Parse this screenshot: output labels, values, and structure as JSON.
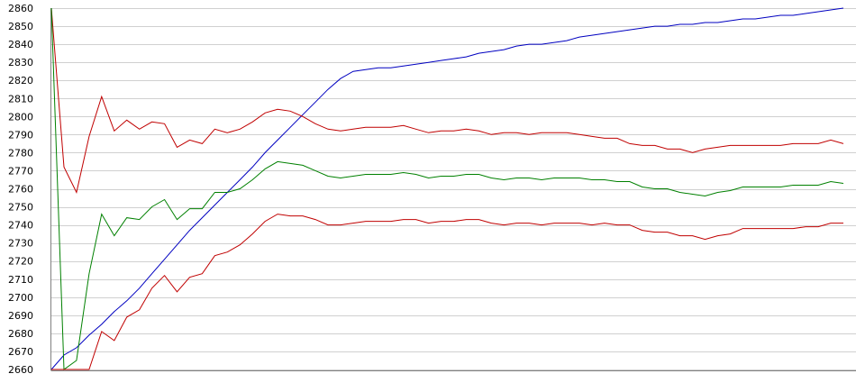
{
  "chart_data": {
    "type": "line",
    "title": "",
    "xlabel": "",
    "ylabel": "",
    "ylim": [
      2660,
      2860
    ],
    "ytick_step": 10,
    "yticks": [
      "2660",
      "2670",
      "2680",
      "2690",
      "2700",
      "2710",
      "2720",
      "2730",
      "2740",
      "2750",
      "2760",
      "2770",
      "2780",
      "2790",
      "2800",
      "2810",
      "2820",
      "2830",
      "2840",
      "2850",
      "2860"
    ],
    "grid": true,
    "legend": "none",
    "xlim": [
      0,
      63
    ],
    "x": [
      0,
      1,
      2,
      3,
      4,
      5,
      6,
      7,
      8,
      9,
      10,
      11,
      12,
      13,
      14,
      15,
      16,
      17,
      18,
      19,
      20,
      21,
      22,
      23,
      24,
      25,
      26,
      27,
      28,
      29,
      30,
      31,
      32,
      33,
      34,
      35,
      36,
      37,
      38,
      39,
      40,
      41,
      42,
      43,
      44,
      45,
      46,
      47,
      48,
      49,
      50,
      51,
      52,
      53,
      54,
      55,
      56,
      57,
      58,
      59,
      60,
      61,
      62,
      63
    ],
    "series": [
      {
        "color": "#0000c0",
        "values": [
          2660,
          2668,
          2672,
          2679,
          2685,
          2692,
          2698,
          2705,
          2713,
          2721,
          2729,
          2737,
          2744,
          2751,
          2758,
          2765,
          2772,
          2780,
          2787,
          2794,
          2801,
          2808,
          2815,
          2821,
          2825,
          2826,
          2827,
          2827,
          2828,
          2829,
          2830,
          2831,
          2832,
          2833,
          2835,
          2836,
          2837,
          2839,
          2840,
          2840,
          2841,
          2842,
          2844,
          2845,
          2846,
          2847,
          2848,
          2849,
          2850,
          2850,
          2851,
          2851,
          2852,
          2852,
          2853,
          2854,
          2854,
          2855,
          2856,
          2856,
          2857,
          2858,
          2859,
          2860
        ]
      },
      {
        "color": "#c00000",
        "values": [
          2860,
          2772,
          2758,
          2789,
          2811,
          2792,
          2798,
          2793,
          2797,
          2796,
          2783,
          2787,
          2785,
          2793,
          2791,
          2793,
          2797,
          2802,
          2804,
          2803,
          2800,
          2796,
          2793,
          2792,
          2793,
          2794,
          2794,
          2794,
          2795,
          2793,
          2791,
          2792,
          2792,
          2793,
          2792,
          2790,
          2791,
          2791,
          2790,
          2791,
          2791,
          2791,
          2790,
          2789,
          2788,
          2788,
          2785,
          2784,
          2784,
          2782,
          2782,
          2780,
          2782,
          2783,
          2784,
          2784,
          2784,
          2784,
          2784,
          2785,
          2785,
          2785,
          2787,
          2785
        ]
      },
      {
        "color": "#008000",
        "values": [
          2860,
          2660,
          2665,
          2713,
          2746,
          2734,
          2744,
          2743,
          2750,
          2754,
          2743,
          2749,
          2749,
          2758,
          2758,
          2760,
          2765,
          2771,
          2775,
          2774,
          2773,
          2770,
          2767,
          2766,
          2767,
          2768,
          2768,
          2768,
          2769,
          2768,
          2766,
          2767,
          2767,
          2768,
          2768,
          2766,
          2765,
          2766,
          2766,
          2765,
          2766,
          2766,
          2766,
          2765,
          2765,
          2764,
          2764,
          2761,
          2760,
          2760,
          2758,
          2757,
          2756,
          2758,
          2759,
          2761,
          2761,
          2761,
          2761,
          2762,
          2762,
          2762,
          2764,
          2763
        ]
      },
      {
        "color": "#c00000",
        "values": [
          2660,
          2660,
          2660,
          2660,
          2681,
          2676,
          2689,
          2693,
          2705,
          2712,
          2703,
          2711,
          2713,
          2723,
          2725,
          2729,
          2735,
          2742,
          2746,
          2745,
          2745,
          2743,
          2740,
          2740,
          2741,
          2742,
          2742,
          2742,
          2743,
          2743,
          2741,
          2742,
          2742,
          2743,
          2743,
          2741,
          2740,
          2741,
          2741,
          2740,
          2741,
          2741,
          2741,
          2740,
          2741,
          2740,
          2740,
          2737,
          2736,
          2736,
          2734,
          2734,
          2732,
          2734,
          2735,
          2738,
          2738,
          2738,
          2738,
          2738,
          2739,
          2739,
          2741,
          2741
        ]
      }
    ]
  }
}
